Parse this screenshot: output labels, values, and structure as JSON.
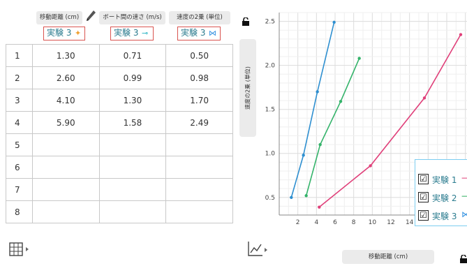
{
  "table": {
    "columns": [
      {
        "header": "移動距離 (cm)",
        "experiment": "実験 3",
        "marker": "✦",
        "color": "#f0a030"
      },
      {
        "header": "ボート間の速さ (m/s)",
        "experiment": "実験 3",
        "marker": "⊸",
        "color": "#20b0c0"
      },
      {
        "header": "速度の2乗 (単位)",
        "experiment": "実験 3",
        "marker": "⋈",
        "color": "#3090e0"
      }
    ],
    "rows": [
      {
        "n": "1",
        "a": "1.30",
        "b": "0.71",
        "c": "0.50"
      },
      {
        "n": "2",
        "a": "2.60",
        "b": "0.99",
        "c": "0.98"
      },
      {
        "n": "3",
        "a": "4.10",
        "b": "1.30",
        "c": "1.70"
      },
      {
        "n": "4",
        "a": "5.90",
        "b": "1.58",
        "c": "2.49"
      },
      {
        "n": "5",
        "a": "",
        "b": "",
        "c": ""
      },
      {
        "n": "6",
        "a": "",
        "b": "",
        "c": ""
      },
      {
        "n": "7",
        "a": "",
        "b": "",
        "c": ""
      },
      {
        "n": "8",
        "a": "",
        "b": "",
        "c": ""
      }
    ]
  },
  "chart": {
    "y_axis_label": "速度の2乗 (単位)",
    "x_axis_label": "移動距離 (cm)",
    "legend": [
      {
        "label": "実験 1",
        "checked": "☑",
        "marker": "⟶",
        "color": "#e0407a"
      },
      {
        "label": "実験 2",
        "checked": "☑",
        "marker": "⟶",
        "color": "#30b060"
      },
      {
        "label": "実験 3",
        "checked": "☑",
        "marker": "⋈",
        "color": "#3090e0"
      }
    ]
  },
  "chart_data": {
    "type": "line",
    "xlabel": "移動距離 (cm)",
    "ylabel": "速度の2乗 (単位)",
    "xlim": [
      0,
      18
    ],
    "ylim": [
      0.3,
      2.6
    ],
    "x_ticks": [
      "2",
      "4",
      "6",
      "8",
      "10",
      "12",
      "14",
      "16"
    ],
    "y_ticks": [
      "0.5",
      "1.0",
      "1.5",
      "2.0",
      "2.5"
    ],
    "grid": true,
    "legend_position": "bottom-right",
    "series": [
      {
        "name": "実験 3",
        "color": "#2e8fd0",
        "x": [
          1.3,
          2.6,
          4.1,
          5.9
        ],
        "y": [
          0.5,
          0.98,
          1.7,
          2.49
        ]
      },
      {
        "name": "実験 2",
        "color": "#34b36a",
        "x": [
          2.9,
          4.4,
          6.6,
          8.6
        ],
        "y": [
          0.52,
          1.1,
          1.59,
          2.08
        ]
      },
      {
        "name": "実験 1",
        "color": "#e0407a",
        "x": [
          4.3,
          9.8,
          15.6,
          19.5
        ],
        "y": [
          0.39,
          0.86,
          1.63,
          2.35
        ]
      }
    ]
  }
}
